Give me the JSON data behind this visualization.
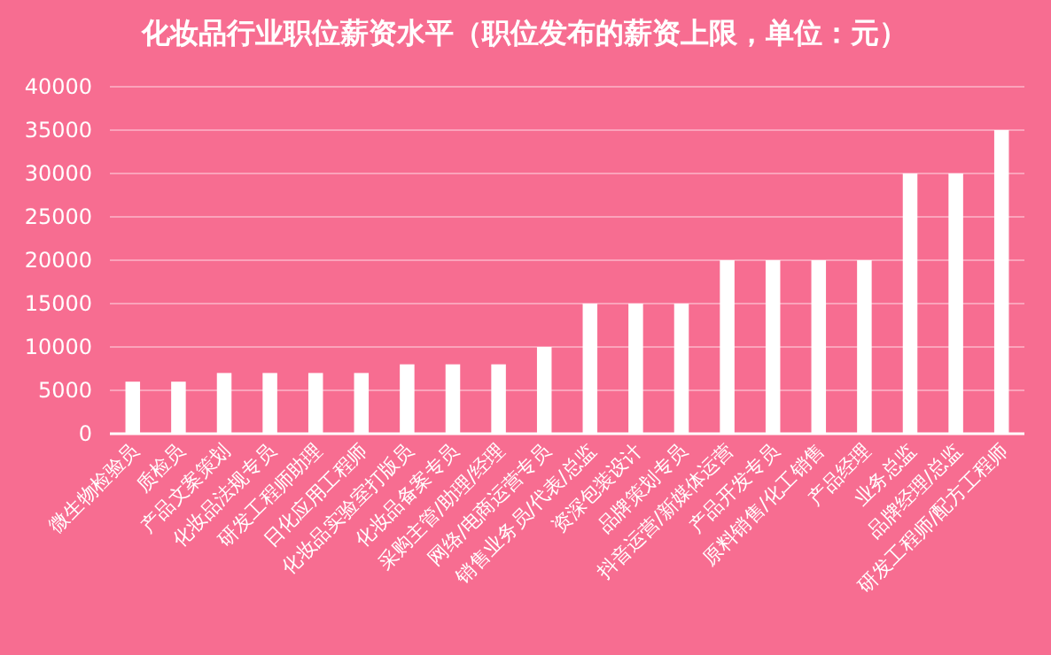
{
  "chart_data": {
    "type": "bar",
    "title": "化妆品行业职位薪资水平（职位发布的薪资上限，单位：元）",
    "categories": [
      "微生物检验员",
      "质检员",
      "产品文案策划",
      "化妆品法规专员",
      "研发工程师助理",
      "日化应用工程师",
      "化妆品实验室打版员",
      "化妆品备案专员",
      "采购主管/助理/经理",
      "网络/电商运营专员",
      "销售业务员/代表/总监",
      "资深包装设计",
      "品牌策划专员",
      "抖音运营/新媒体运营",
      "产品开发专员",
      "原料销售/化工销售",
      "产品经理",
      "业务总监",
      "品牌经理/总监",
      "研发工程师/配方工程师"
    ],
    "values": [
      6000,
      6000,
      7000,
      7000,
      7000,
      7000,
      8000,
      8000,
      8000,
      10000,
      15000,
      15000,
      15000,
      20000,
      20000,
      20000,
      20000,
      30000,
      30000,
      35000
    ],
    "color": "#ffffff",
    "ylim": [
      0,
      40000
    ],
    "yticks": [
      0,
      5000,
      10000,
      15000,
      20000,
      25000,
      30000,
      35000,
      40000
    ],
    "grid": "y"
  }
}
